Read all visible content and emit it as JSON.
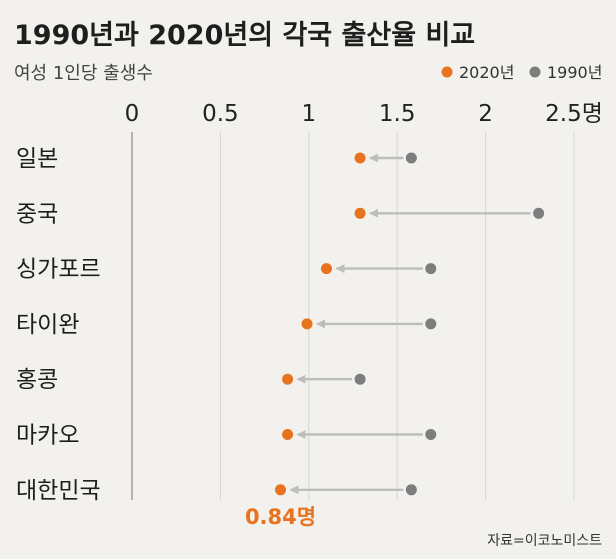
{
  "chart_data": {
    "type": "dot",
    "title": "1990년과 2020년의 각국 출산율 비교",
    "subtitle": "여성 1인당 출생수",
    "categories": [
      "일본",
      "중국",
      "싱가포르",
      "타이완",
      "홍콩",
      "마카오",
      "대한민국"
    ],
    "series": [
      {
        "name": "2020년",
        "color": "#e8731e",
        "values": [
          1.29,
          1.29,
          1.1,
          0.99,
          0.88,
          0.88,
          0.84
        ]
      },
      {
        "name": "1990년",
        "color": "#7d7d7d",
        "values": [
          1.58,
          2.3,
          1.69,
          1.69,
          1.29,
          1.69,
          1.58
        ]
      }
    ],
    "xticks": [
      "0",
      "0.5",
      "1",
      "1.5",
      "2",
      "2.5명"
    ],
    "xtick_values": [
      0,
      0.5,
      1,
      1.5,
      2,
      2.5
    ],
    "xlim": [
      0,
      2.5
    ],
    "grid": true,
    "legend_position": "top-right",
    "arrow_color": "#bdbdbd",
    "annotations": [
      {
        "category": "대한민국",
        "text": "0.84명",
        "color": "#e8731e"
      }
    ],
    "source": "자료=이코노미스트"
  }
}
